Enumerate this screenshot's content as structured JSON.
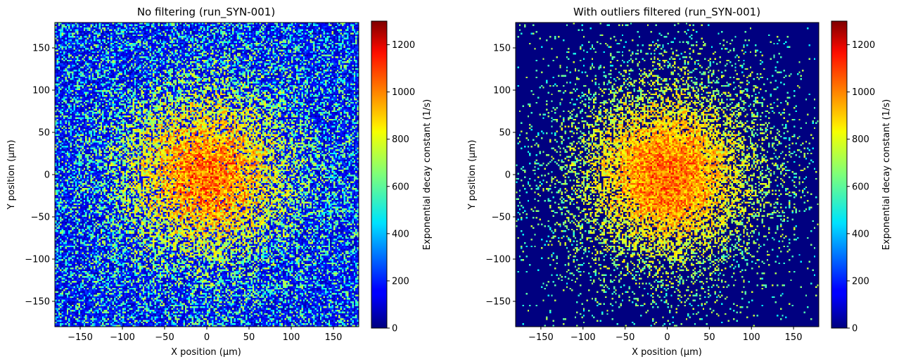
{
  "chart_data": [
    {
      "type": "heatmap",
      "title": "No filtering (run_SYN-001)",
      "xlabel": "X position (µm)",
      "ylabel": "Y position (µm)",
      "xlim": [
        -180,
        180
      ],
      "ylim": [
        -180,
        180
      ],
      "xticks": [
        -150,
        -100,
        -50,
        0,
        50,
        100,
        150
      ],
      "yticks": [
        -150,
        -100,
        -50,
        0,
        50,
        100,
        150
      ],
      "bins": 180,
      "colormap": "jet",
      "colorbar": {
        "label": "Exponential decay constant (1/s)",
        "range": [
          0,
          1300
        ],
        "ticks": [
          0,
          200,
          400,
          600,
          800,
          1000,
          1200
        ]
      },
      "distribution": {
        "center": [
          0,
          0
        ],
        "peak_value": 1000,
        "gaussian_sigma_um": 70,
        "background_value": 150,
        "outliers_filtered": false
      }
    },
    {
      "type": "heatmap",
      "title": "With outliers filtered (run_SYN-001)",
      "xlabel": "X position (µm)",
      "ylabel": "Y position (µm)",
      "xlim": [
        -180,
        180
      ],
      "ylim": [
        -180,
        180
      ],
      "xticks": [
        -150,
        -100,
        -50,
        0,
        50,
        100,
        150
      ],
      "yticks": [
        -150,
        -100,
        -50,
        0,
        50,
        100,
        150
      ],
      "bins": 180,
      "colormap": "jet",
      "colorbar": {
        "label": "Exponential decay constant (1/s)",
        "range": [
          0,
          1300
        ],
        "ticks": [
          0,
          200,
          400,
          600,
          800,
          1000,
          1200
        ]
      },
      "distribution": {
        "center": [
          0,
          0
        ],
        "peak_value": 1000,
        "gaussian_sigma_um": 70,
        "background_value": 0,
        "outliers_filtered": true
      }
    }
  ]
}
